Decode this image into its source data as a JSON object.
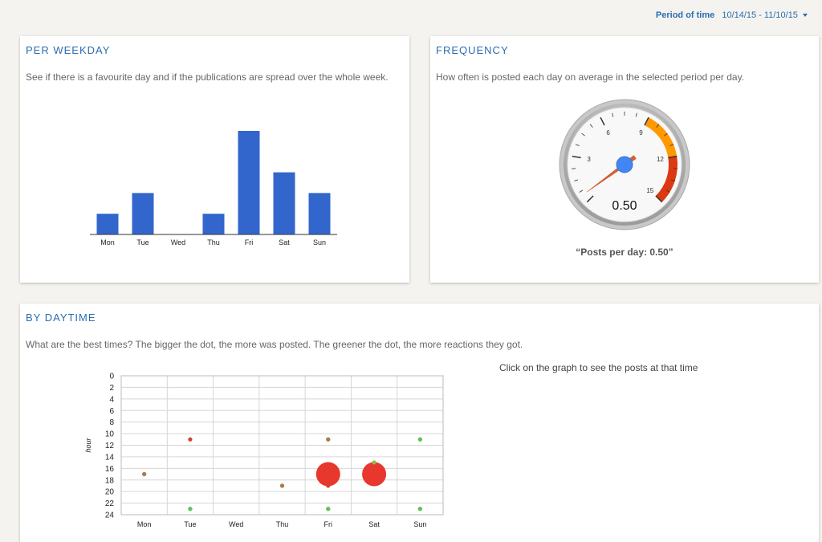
{
  "header": {
    "period_label": "Period of time",
    "period_value": "10/14/15 - 11/10/15"
  },
  "weekday": {
    "title": "PER WEEKDAY",
    "description": "See if there is a favourite day and if the publications are spread over the whole week."
  },
  "frequency": {
    "title": "FREQUENCY",
    "description": "How often is posted each day on average in the selected period per day.",
    "caption": "“Posts per day: 0.50”"
  },
  "daytime": {
    "title": "BY DAYTIME",
    "description": "What are the best times? The bigger the dot, the more was posted. The greener the dot, the more reactions they got.",
    "hint": "Click on the graph to see the posts at that time"
  },
  "chart_data": [
    {
      "type": "bar",
      "categories": [
        "Mon",
        "Tue",
        "Wed",
        "Thu",
        "Fri",
        "Sat",
        "Sun"
      ],
      "values": [
        1,
        2,
        0,
        1,
        5,
        3,
        2
      ],
      "ylim": [
        0,
        5
      ],
      "color": "#3366cc"
    },
    {
      "type": "gauge",
      "value": 0.5,
      "value_label": "0.50",
      "min": 0,
      "max": 15,
      "major_ticks": [
        3,
        6,
        9,
        12,
        15
      ],
      "bands": [
        {
          "from": 9,
          "to": 12,
          "color": "#ff9900"
        },
        {
          "from": 12,
          "to": 15,
          "color": "#dc3912"
        }
      ]
    },
    {
      "type": "scatter",
      "categories": [
        "Mon",
        "Tue",
        "Wed",
        "Thu",
        "Fri",
        "Sat",
        "Sun"
      ],
      "ylabel": "hour",
      "ylim": [
        0,
        24
      ],
      "y_ticks": [
        0,
        2,
        4,
        6,
        8,
        10,
        12,
        14,
        16,
        18,
        20,
        22,
        24
      ],
      "y_reversed": true,
      "points": [
        {
          "day": "Mon",
          "hour": 17,
          "size": 1,
          "color": "#b07a3c"
        },
        {
          "day": "Tue",
          "hour": 11,
          "size": 1,
          "color": "#e8372c"
        },
        {
          "day": "Tue",
          "hour": 23,
          "size": 1,
          "color": "#4cd04c"
        },
        {
          "day": "Thu",
          "hour": 19,
          "size": 1,
          "color": "#b07a3c"
        },
        {
          "day": "Fri",
          "hour": 11,
          "size": 1,
          "color": "#b07a3c"
        },
        {
          "day": "Fri",
          "hour": 17,
          "size": 4,
          "color": "#e8372c"
        },
        {
          "day": "Fri",
          "hour": 19,
          "size": 1,
          "color": "#e8372c"
        },
        {
          "day": "Fri",
          "hour": 23,
          "size": 1,
          "color": "#4cd04c"
        },
        {
          "day": "Sat",
          "hour": 15,
          "size": 1,
          "color": "#8bbf3c"
        },
        {
          "day": "Sat",
          "hour": 17,
          "size": 4,
          "color": "#e8372c"
        },
        {
          "day": "Sun",
          "hour": 11,
          "size": 1,
          "color": "#4cd04c"
        },
        {
          "day": "Sun",
          "hour": 23,
          "size": 1,
          "color": "#4cd04c"
        }
      ]
    }
  ]
}
